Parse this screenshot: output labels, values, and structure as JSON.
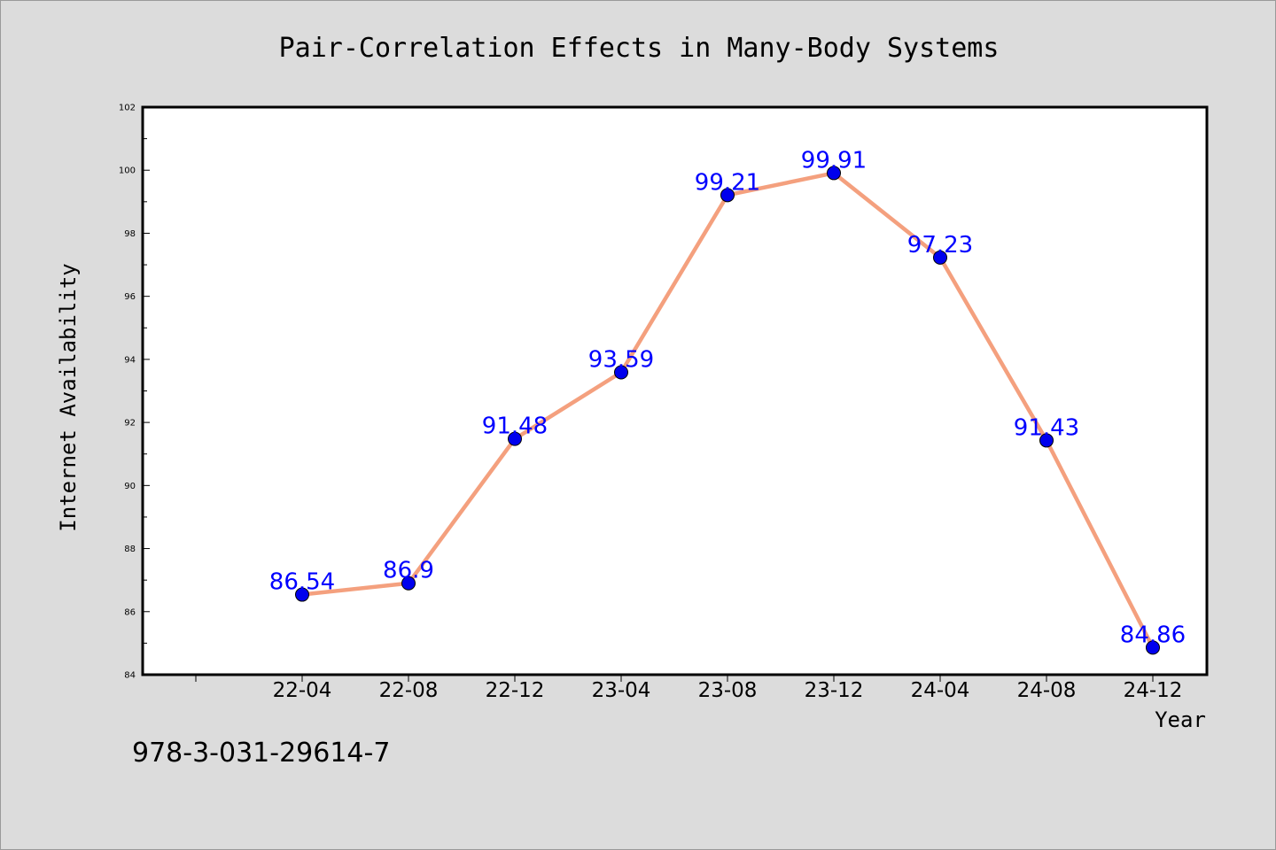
{
  "chart_data": {
    "type": "line",
    "title": "Pair-Correlation Effects in Many-Body Systems",
    "xlabel": "Year",
    "ylabel": "Internet Availability",
    "categories": [
      "22-04",
      "22-08",
      "22-12",
      "23-04",
      "23-08",
      "23-12",
      "24-04",
      "24-08",
      "24-12"
    ],
    "values": [
      86.54,
      86.9,
      91.48,
      93.59,
      99.21,
      99.91,
      97.23,
      91.43,
      84.86
    ],
    "data_labels": [
      "86.54",
      "86.9",
      "91.48",
      "93.59",
      "99.21",
      "99.91",
      "97.23",
      "91.43",
      "84.86"
    ],
    "ylim": [
      84,
      102
    ],
    "yticks": [
      84,
      86,
      88,
      90,
      92,
      94,
      96,
      98,
      100,
      102
    ],
    "grid": false,
    "colors": {
      "line": "#f4a07e",
      "marker": "#0000ee",
      "label": "#0000ff"
    }
  },
  "footer": {
    "isbn": "978-3-031-29614-7"
  }
}
